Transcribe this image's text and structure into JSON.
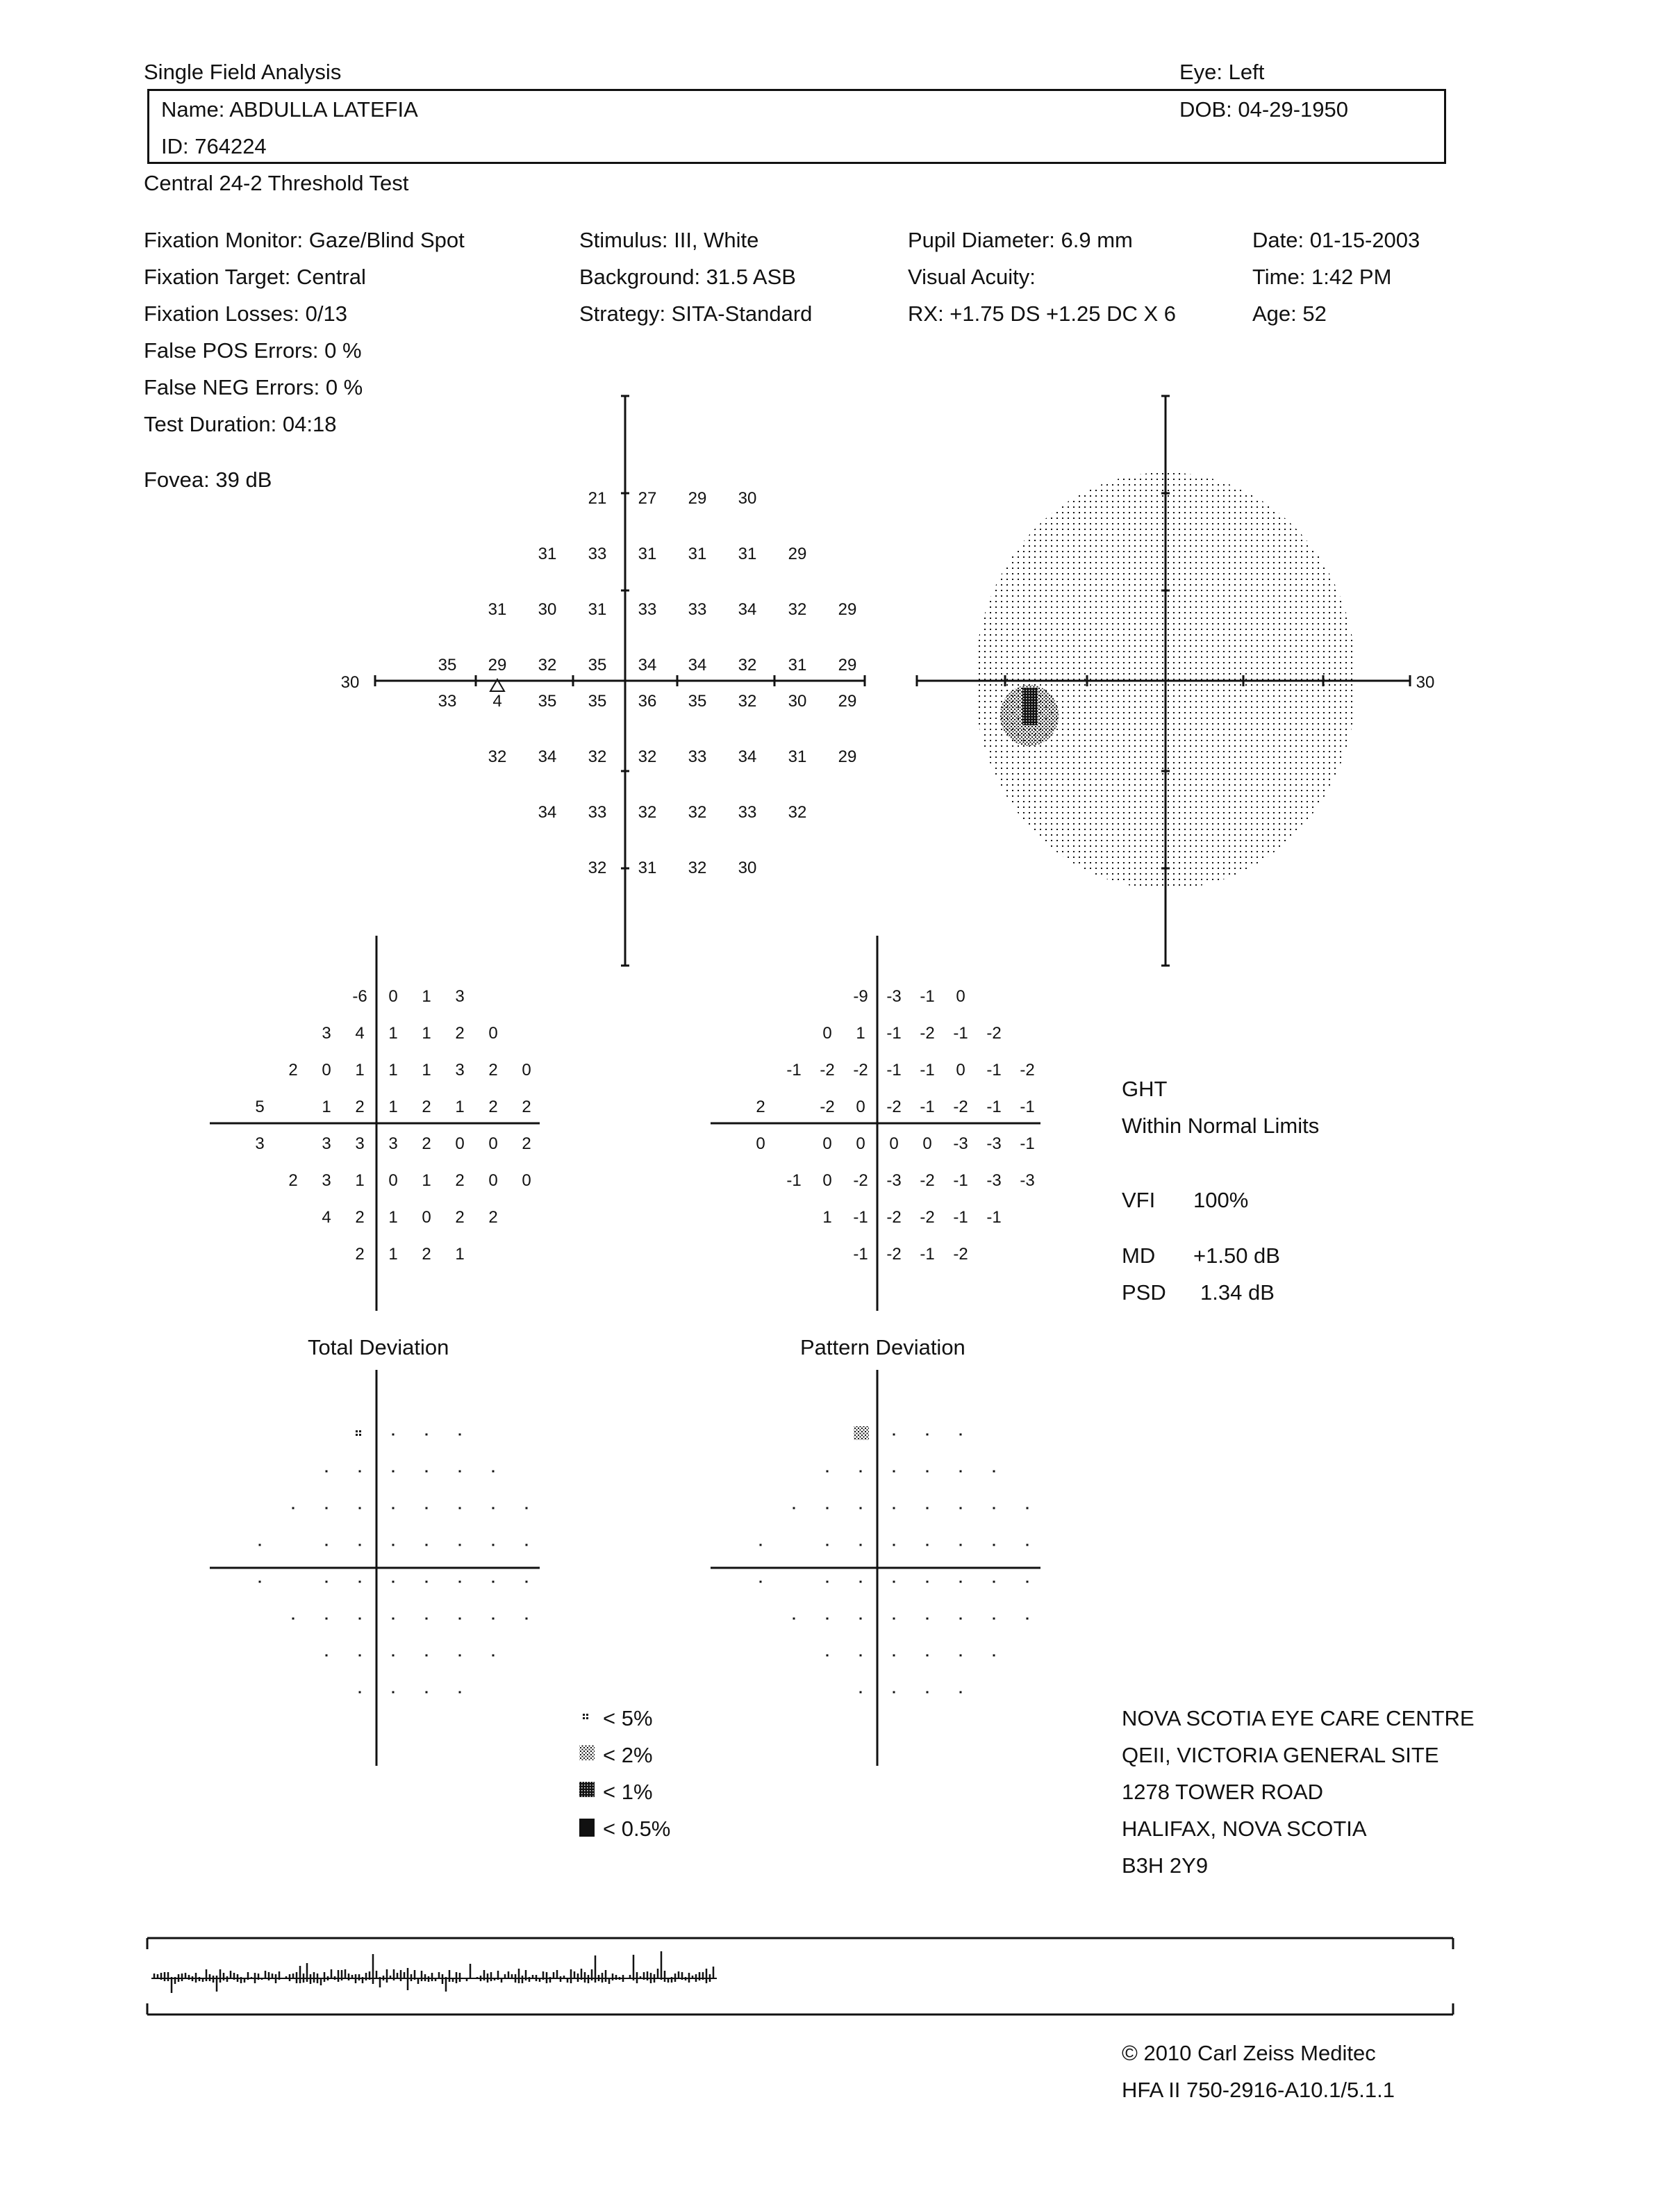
{
  "header": {
    "title": "Single Field Analysis",
    "eye": "Eye: Left",
    "name": "Name: ABDULLA LATEFIA",
    "dob": "DOB: 04-29-1950",
    "id": "ID: 764224",
    "test": "Central 24-2 Threshold Test"
  },
  "params": {
    "col1": [
      "Fixation Monitor: Gaze/Blind Spot",
      "Fixation Target: Central",
      "Fixation Losses: 0/13",
      "False POS Errors:   0 %",
      "False NEG Errors:   0 %",
      "Test Duration: 04:18"
    ],
    "col2": [
      "Stimulus: III, White",
      "Background: 31.5 ASB",
      "Strategy: SITA-Standard"
    ],
    "col3": [
      "Pupil Diameter: 6.9 mm",
      "Visual Acuity:",
      "RX: +1.75 DS  +1.25 DC  X  6"
    ],
    "col4": [
      "Date: 01-15-2003",
      "Time:  1:42 PM",
      "Age: 52"
    ],
    "fovea": "Fovea: 39 dB"
  },
  "threshold_plot": {
    "axis_label_left": "30",
    "axis_label_right": "30",
    "rows": [
      [
        "21",
        "27",
        "29",
        "30"
      ],
      [
        "31",
        "33",
        "31",
        "31",
        "31",
        "29"
      ],
      [
        "31",
        "30",
        "31",
        "33",
        "33",
        "34",
        "32",
        "29"
      ],
      [
        "35",
        "29",
        "32",
        "35",
        "34",
        "34",
        "32",
        "31",
        "29"
      ],
      [
        "33",
        "4",
        "35",
        "35",
        "36",
        "35",
        "32",
        "30",
        "29"
      ],
      [
        "32",
        "34",
        "32",
        "32",
        "33",
        "34",
        "31",
        "29"
      ],
      [
        "34",
        "33",
        "32",
        "32",
        "33",
        "32"
      ],
      [
        "32",
        "31",
        "32",
        "30"
      ]
    ]
  },
  "total_deviation": {
    "label": "Total Deviation",
    "rows": [
      [
        "-6",
        "0",
        "1",
        "3"
      ],
      [
        "3",
        "4",
        "1",
        "1",
        "2",
        "0"
      ],
      [
        "2",
        "0",
        "1",
        "1",
        "1",
        "3",
        "2",
        "0"
      ],
      [
        "5",
        "",
        "1",
        "2",
        "1",
        "2",
        "1",
        "2",
        "2"
      ],
      [
        "3",
        "",
        "3",
        "3",
        "3",
        "2",
        "0",
        "0",
        "2"
      ],
      [
        "2",
        "3",
        "1",
        "0",
        "1",
        "2",
        "0",
        "0"
      ],
      [
        "4",
        "2",
        "1",
        "0",
        "2",
        "2"
      ],
      [
        "2",
        "1",
        "2",
        "1"
      ]
    ]
  },
  "pattern_deviation": {
    "label": "Pattern Deviation",
    "rows": [
      [
        "-9",
        "-3",
        "-1",
        "0"
      ],
      [
        "0",
        "1",
        "-1",
        "-2",
        "-1",
        "-2"
      ],
      [
        "-1",
        "-2",
        "-2",
        "-1",
        "-1",
        "0",
        "-1",
        "-2"
      ],
      [
        "2",
        "",
        "-2",
        "0",
        "-2",
        "-1",
        "-2",
        "-1",
        "-1"
      ],
      [
        "0",
        "",
        "0",
        "0",
        "0",
        "0",
        "-3",
        "-3",
        "-1"
      ],
      [
        "-1",
        "0",
        "-2",
        "-3",
        "-2",
        "-1",
        "-3",
        "-3"
      ],
      [
        "1",
        "-1",
        "-2",
        "-2",
        "-1",
        "-1"
      ],
      [
        "-1",
        "-2",
        "-1",
        "-2"
      ]
    ]
  },
  "indices": {
    "ght_label": "GHT",
    "ght_value": "Within Normal Limits",
    "vfi_label": "VFI",
    "vfi_value": "100%",
    "md_label": "MD",
    "md_value": "+1.50 dB",
    "psd_label": "PSD",
    "psd_value": "1.34 dB"
  },
  "legend": [
    "< 5%",
    "< 2%",
    "< 1%",
    "< 0.5%"
  ],
  "site": [
    "NOVA SCOTIA EYE CARE CENTRE",
    "QEII, VICTORIA GENERAL SITE",
    "1278 TOWER ROAD",
    "HALIFAX, NOVA SCOTIA",
    "B3H 2Y9"
  ],
  "footer": {
    "copyright": "© 2010 Carl Zeiss Meditec",
    "version": "HFA II 750-2916-A10.1/5.1.1"
  }
}
